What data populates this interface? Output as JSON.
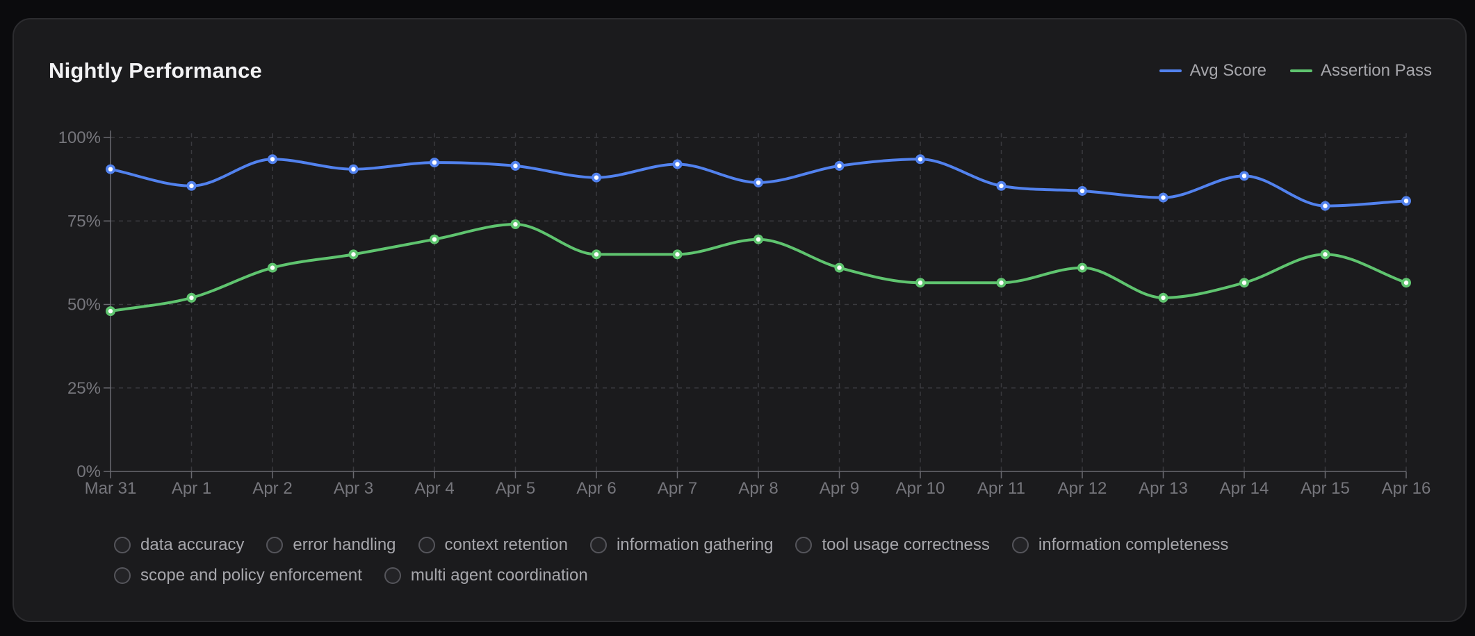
{
  "card": {
    "title": "Nightly Performance"
  },
  "legend": [
    {
      "label": "Avg Score",
      "color": "#5282ee"
    },
    {
      "label": "Assertion Pass",
      "color": "#5fc46f"
    }
  ],
  "chart_data": {
    "type": "line",
    "title": "Nightly Performance",
    "xlabel": "",
    "ylabel": "",
    "x": [
      "Mar 31",
      "Apr 1",
      "Apr 2",
      "Apr 3",
      "Apr 4",
      "Apr 5",
      "Apr 6",
      "Apr 7",
      "Apr 8",
      "Apr 9",
      "Apr 10",
      "Apr 11",
      "Apr 12",
      "Apr 13",
      "Apr 14",
      "Apr 15",
      "Apr 16"
    ],
    "ylim": [
      0,
      100
    ],
    "yticks": [
      "0%",
      "25%",
      "50%",
      "75%",
      "100%"
    ],
    "grid": true,
    "legend_position": "top-right",
    "series": [
      {
        "name": "Avg Score",
        "color": "#5282ee",
        "values": [
          90.5,
          85.5,
          93.5,
          90.5,
          92.5,
          91.5,
          88,
          92,
          86.5,
          91.5,
          93.5,
          85.5,
          84,
          82,
          88.5,
          79.5,
          81
        ]
      },
      {
        "name": "Assertion Pass",
        "color": "#5fc46f",
        "values": [
          48,
          52,
          61,
          65,
          69.5,
          74,
          65,
          65,
          69.5,
          61,
          56.5,
          56.5,
          61,
          52,
          56.5,
          65,
          56.5
        ]
      }
    ]
  },
  "filters": [
    {
      "label": "data accuracy"
    },
    {
      "label": "error handling"
    },
    {
      "label": "context retention"
    },
    {
      "label": "information gathering"
    },
    {
      "label": "tool usage correctness"
    },
    {
      "label": "information completeness"
    },
    {
      "label": "scope and policy enforcement"
    },
    {
      "label": "multi agent coordination"
    }
  ]
}
